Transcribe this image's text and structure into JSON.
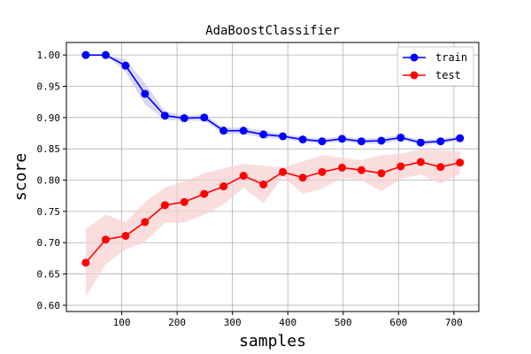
{
  "chart_data": {
    "type": "line",
    "title": "AdaBoostClassifier",
    "xlabel": "samples",
    "ylabel": "score",
    "xlim": [
      0,
      745
    ],
    "ylim": [
      0.59,
      1.02
    ],
    "xticks": [
      100,
      200,
      300,
      400,
      500,
      600,
      700
    ],
    "yticks": [
      0.6,
      0.65,
      0.7,
      0.75,
      0.8,
      0.85,
      0.9,
      0.95,
      1.0
    ],
    "grid": true,
    "legend_position": "top-right",
    "x": [
      35,
      71,
      107,
      142,
      178,
      213,
      249,
      284,
      320,
      356,
      391,
      427,
      462,
      498,
      533,
      569,
      604,
      640,
      676,
      711
    ],
    "series": [
      {
        "name": "train",
        "color": "#0000ff",
        "band_color": "#c8c8f0",
        "values": [
          1.0,
          1.0,
          0.983,
          0.938,
          0.903,
          0.899,
          0.9,
          0.879,
          0.879,
          0.873,
          0.87,
          0.865,
          0.862,
          0.866,
          0.862,
          0.863,
          0.868,
          0.86,
          0.862,
          0.867
        ],
        "upper": [
          1.0,
          1.0,
          0.993,
          0.955,
          0.91,
          0.903,
          0.905,
          0.884,
          0.884,
          0.879,
          0.874,
          0.869,
          0.866,
          0.87,
          0.866,
          0.868,
          0.872,
          0.864,
          0.866,
          0.871
        ],
        "lower": [
          1.0,
          1.0,
          0.973,
          0.921,
          0.896,
          0.895,
          0.895,
          0.874,
          0.874,
          0.867,
          0.866,
          0.861,
          0.858,
          0.862,
          0.858,
          0.858,
          0.864,
          0.856,
          0.858,
          0.863
        ]
      },
      {
        "name": "test",
        "color": "#ff0000",
        "band_color": "#f8d0d0",
        "values": [
          0.668,
          0.705,
          0.711,
          0.733,
          0.76,
          0.765,
          0.778,
          0.79,
          0.807,
          0.793,
          0.813,
          0.804,
          0.813,
          0.82,
          0.816,
          0.811,
          0.822,
          0.829,
          0.821,
          0.828
        ],
        "upper": [
          0.722,
          0.745,
          0.733,
          0.765,
          0.788,
          0.798,
          0.811,
          0.819,
          0.826,
          0.823,
          0.82,
          0.83,
          0.84,
          0.836,
          0.832,
          0.84,
          0.842,
          0.849,
          0.848,
          0.846
        ],
        "lower": [
          0.614,
          0.665,
          0.689,
          0.701,
          0.732,
          0.732,
          0.745,
          0.761,
          0.788,
          0.763,
          0.806,
          0.778,
          0.786,
          0.804,
          0.8,
          0.782,
          0.802,
          0.809,
          0.794,
          0.81
        ]
      }
    ]
  }
}
